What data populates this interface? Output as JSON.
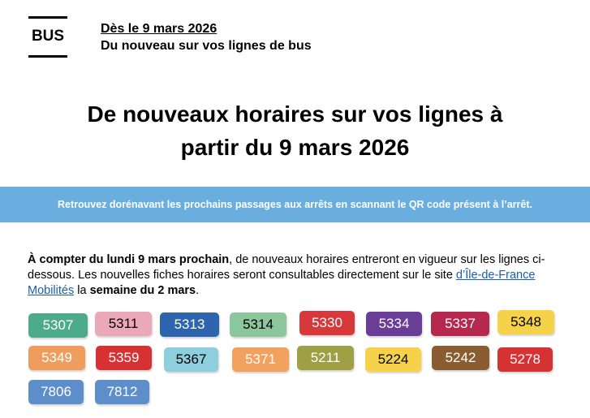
{
  "logo": {
    "text": "BUS"
  },
  "header": {
    "date": "Dès le 9 mars 2026",
    "subtitle": "Du nouveau sur vos lignes de bus"
  },
  "title": {
    "line1": "De nouveaux horaires sur vos lignes à",
    "line2": "partir du 9 mars 2026"
  },
  "banner": "Retrouvez dorénavant les prochains passages aux arrêts en scannant le QR code présent à l’arrêt.",
  "intro": {
    "lead_bold": "À compter du lundi 9 mars prochain",
    "text1": ", de nouveaux horaires entreront en vigueur sur les lignes ci-dessous. Les nouvelles fiches horaires seront consultables directement sur le site ",
    "link": "d’Île-de-France Mobilités",
    "text2": " la ",
    "week_bold": "semaine du 2 mars",
    "end": "."
  },
  "lines": [
    {
      "label": "5307",
      "bg": "#4dab8c",
      "color": "#ffffff"
    },
    {
      "label": "5311",
      "bg": "#eba8b8",
      "color": "#000000"
    },
    {
      "label": "5313",
      "bg": "#2c64ad",
      "color": "#ffffff"
    },
    {
      "label": "5314",
      "bg": "#8cc79c",
      "color": "#000000"
    },
    {
      "label": "5330",
      "bg": "#d8383a",
      "color": "#ffffff"
    },
    {
      "label": "5334",
      "bg": "#6a3d97",
      "color": "#ffffff"
    },
    {
      "label": "5337",
      "bg": "#b5294f",
      "color": "#ffffff"
    },
    {
      "label": "5348",
      "bg": "#f6d24a",
      "color": "#000000"
    },
    {
      "label": "5349",
      "bg": "#ef9d5e",
      "color": "#ffffff"
    },
    {
      "label": "5359",
      "bg": "#d63233",
      "color": "#ffffff"
    },
    {
      "label": "5367",
      "bg": "#8dcfdc",
      "color": "#000000"
    },
    {
      "label": "5371",
      "bg": "#f0a25e",
      "color": "#ffffff"
    },
    {
      "label": "5211",
      "bg": "#9fa045",
      "color": "#ffffff"
    },
    {
      "label": "5224",
      "bg": "#f6d24a",
      "color": "#000000"
    },
    {
      "label": "5242",
      "bg": "#8a5d30",
      "color": "#ffffff"
    },
    {
      "label": "5278",
      "bg": "#d63233",
      "color": "#ffffff"
    },
    {
      "label": "7806",
      "bg": "#5d8ec9",
      "color": "#ffffff"
    },
    {
      "label": "7812",
      "bg": "#5d8ec9",
      "color": "#ffffff"
    }
  ]
}
